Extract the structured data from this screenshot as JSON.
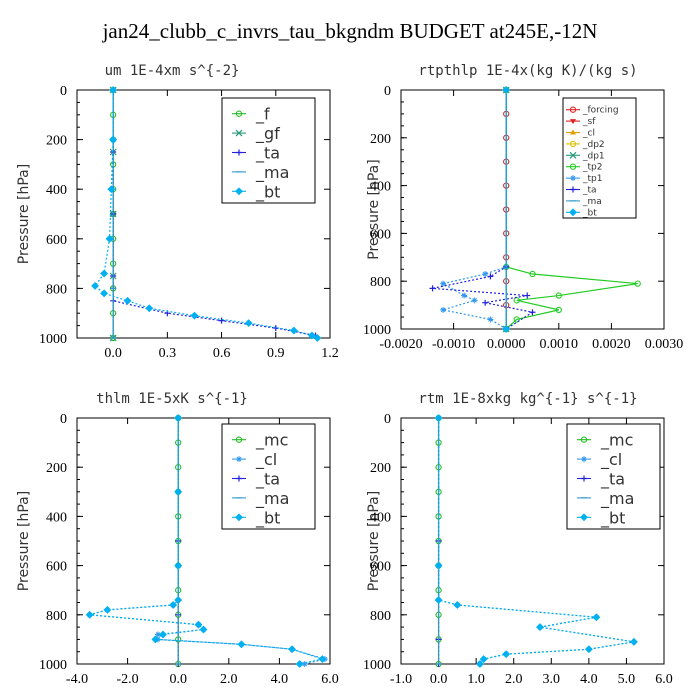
{
  "figure_title": "jan24_clubb_c_invrs_tau_bkgndm  BUDGET at245E,-12N",
  "chart_data": [
    {
      "type": "line",
      "title": "um  1E-4xm s^{-2}",
      "ylabel": "Pressure [hPa]",
      "xlim": [
        -0.2,
        1.2
      ],
      "ylim": [
        1000,
        0
      ],
      "xticks": [
        "0.0",
        "0.3",
        "0.6",
        "0.9",
        "1.2"
      ],
      "xtick_values": [
        0.0,
        0.3,
        0.6,
        0.9,
        1.2
      ],
      "yticks": [
        "0",
        "200",
        "400",
        "600",
        "800",
        "1000"
      ],
      "legend_style": "large",
      "series": [
        {
          "name": "_f",
          "color": "#22bb22",
          "marker": "o",
          "x": [
            0,
            0,
            0,
            0,
            0,
            0,
            0,
            0,
            0,
            0,
            0
          ],
          "y": [
            0,
            100,
            200,
            300,
            400,
            500,
            600,
            700,
            800,
            900,
            1000
          ]
        },
        {
          "name": "_gf",
          "color": "#2a9a7a",
          "marker": "x",
          "x": [
            0,
            0,
            0,
            0,
            0
          ],
          "y": [
            0,
            250,
            500,
            750,
            1000
          ]
        },
        {
          "name": "_ta",
          "color": "#2222dd",
          "marker": "+",
          "x": [
            0,
            0,
            0,
            0,
            0,
            0.0,
            0.3,
            0.6,
            0.9,
            1.12
          ],
          "y": [
            0,
            250,
            500,
            750,
            800,
            850,
            900,
            930,
            960,
            990
          ]
        },
        {
          "name": "_ma",
          "color": "#3399cc",
          "marker": "-",
          "x": [
            0,
            0,
            0,
            0
          ],
          "y": [
            0,
            400,
            800,
            1000
          ]
        },
        {
          "name": "_bt",
          "color": "#00b0f0",
          "marker": "diamond",
          "x": [
            0.0,
            0.0,
            -0.01,
            -0.02,
            -0.05,
            -0.1,
            -0.05,
            0.08,
            0.2,
            0.45,
            0.75,
            1.0,
            1.1,
            1.13
          ],
          "y": [
            0,
            200,
            400,
            600,
            740,
            790,
            820,
            850,
            880,
            910,
            940,
            970,
            990,
            1000
          ]
        }
      ]
    },
    {
      "type": "line",
      "title": "rtpthlp  1E-4x(kg K)/(kg s)",
      "ylabel": "Pressure [hPa]",
      "xlim": [
        -0.002,
        0.003
      ],
      "ylim": [
        1000,
        0
      ],
      "xticks": [
        "-0.0020",
        "-0.0010",
        "0.0000",
        "0.0010",
        "0.0020",
        "0.0030"
      ],
      "xtick_values": [
        -0.002,
        -0.001,
        0.0,
        0.001,
        0.002,
        0.003
      ],
      "yticks": [
        "0",
        "200",
        "400",
        "600",
        "800",
        "1000"
      ],
      "legend_style": "small",
      "series": [
        {
          "name": "_forcing",
          "color": "#dd2222",
          "marker": "o",
          "x": [
            0,
            0,
            0,
            0,
            0,
            0,
            0,
            0,
            0,
            0,
            0
          ],
          "y": [
            0,
            100,
            200,
            300,
            400,
            500,
            600,
            700,
            800,
            900,
            1000
          ]
        },
        {
          "name": "_sf",
          "color": "#dd2222",
          "marker": "v",
          "x": [
            0,
            0
          ],
          "y": [
            0,
            1000
          ]
        },
        {
          "name": "_cl",
          "color": "#e0a000",
          "marker": "^",
          "x": [
            0,
            0
          ],
          "y": [
            0,
            1000
          ]
        },
        {
          "name": "_dp2",
          "color": "#e0c000",
          "marker": "o",
          "x": [
            0,
            0
          ],
          "y": [
            0,
            1000
          ]
        },
        {
          "name": "_dp1",
          "color": "#2a9a7a",
          "marker": "x",
          "x": [
            0,
            0
          ],
          "y": [
            0,
            1000
          ]
        },
        {
          "name": "_tp2",
          "color": "#22cc22",
          "marker": "o",
          "x": [
            0,
            0,
            0.0005,
            0.0025,
            0.001,
            0.0002,
            0.001,
            0.0002,
            0
          ],
          "y": [
            0,
            740,
            770,
            810,
            860,
            880,
            920,
            960,
            1000
          ]
        },
        {
          "name": "_tp1",
          "color": "#3399ee",
          "marker": "*",
          "x": [
            0,
            0,
            -0.0004,
            -0.0012,
            -0.0008,
            -0.0006,
            -0.0012,
            -0.0003,
            0
          ],
          "y": [
            0,
            740,
            770,
            810,
            860,
            880,
            920,
            960,
            1000
          ]
        },
        {
          "name": "_ta",
          "color": "#2222dd",
          "marker": "+",
          "x": [
            0,
            0,
            -0.0003,
            -0.0014,
            0.0004,
            -0.0004,
            0.0005,
            0
          ],
          "y": [
            0,
            740,
            780,
            830,
            860,
            890,
            930,
            1000
          ]
        },
        {
          "name": "_ma",
          "color": "#3399cc",
          "marker": "-",
          "x": [
            0,
            0
          ],
          "y": [
            0,
            1000
          ]
        },
        {
          "name": "_bt",
          "color": "#00b0f0",
          "marker": "diamond",
          "x": [
            0,
            0
          ],
          "y": [
            0,
            1000
          ]
        }
      ]
    },
    {
      "type": "line",
      "title": "thlm  1E-5xK s^{-1}",
      "ylabel": "Pressure [hPa]",
      "xlim": [
        -4.0,
        6.0
      ],
      "ylim": [
        1000,
        0
      ],
      "xticks": [
        "-4.0",
        "-2.0",
        "0.0",
        "2.0",
        "4.0",
        "6.0"
      ],
      "xtick_values": [
        -4.0,
        -2.0,
        0.0,
        2.0,
        4.0,
        6.0
      ],
      "yticks": [
        "0",
        "200",
        "400",
        "600",
        "800",
        "1000"
      ],
      "legend_style": "large",
      "series": [
        {
          "name": "_mc",
          "color": "#22bb22",
          "marker": "o",
          "x": [
            0,
            0,
            0,
            0,
            0,
            0,
            0,
            0,
            0,
            0,
            0
          ],
          "y": [
            0,
            100,
            200,
            300,
            400,
            500,
            600,
            700,
            800,
            900,
            1000
          ]
        },
        {
          "name": "_cl",
          "color": "#3399ee",
          "marker": "*",
          "x": [
            0,
            0,
            0,
            0,
            -0.2,
            -2.8,
            -3.5,
            0.8,
            1.0,
            -0.8,
            -0.8,
            2.5,
            4.5,
            5.8,
            5.0
          ],
          "y": [
            0,
            300,
            600,
            740,
            760,
            780,
            800,
            840,
            860,
            880,
            900,
            920,
            940,
            980,
            1000
          ]
        },
        {
          "name": "_ta",
          "color": "#2222dd",
          "marker": "+",
          "x": [
            0,
            0,
            0,
            0
          ],
          "y": [
            0,
            500,
            800,
            1000
          ]
        },
        {
          "name": "_ma",
          "color": "#3399cc",
          "marker": "-",
          "x": [
            0,
            0
          ],
          "y": [
            0,
            1000
          ]
        },
        {
          "name": "_bt",
          "color": "#00b0f0",
          "marker": "diamond",
          "x": [
            0,
            0,
            0,
            0,
            -0.2,
            -2.8,
            -3.5,
            0.8,
            1.0,
            -0.6,
            -0.9,
            2.5,
            4.5,
            5.7,
            4.8
          ],
          "y": [
            0,
            300,
            600,
            740,
            760,
            780,
            800,
            840,
            860,
            880,
            900,
            920,
            940,
            980,
            1000
          ]
        }
      ]
    },
    {
      "type": "line",
      "title": "rtm  1E-8xkg kg^{-1} s^{-1}",
      "ylabel": "Pressure [hPa]",
      "xlim": [
        -1.0,
        6.0
      ],
      "ylim": [
        1000,
        0
      ],
      "xticks": [
        "-1.0",
        "0.0",
        "1.0",
        "2.0",
        "3.0",
        "4.0",
        "5.0",
        "6.0"
      ],
      "xtick_values": [
        -1.0,
        0.0,
        1.0,
        2.0,
        3.0,
        4.0,
        5.0,
        6.0
      ],
      "yticks": [
        "0",
        "200",
        "400",
        "600",
        "800",
        "1000"
      ],
      "legend_style": "large",
      "series": [
        {
          "name": "_mc",
          "color": "#22bb22",
          "marker": "o",
          "x": [
            0,
            0,
            0,
            0,
            0,
            0,
            0,
            0,
            0,
            0,
            0
          ],
          "y": [
            0,
            100,
            200,
            300,
            400,
            500,
            600,
            700,
            800,
            900,
            1000
          ]
        },
        {
          "name": "_cl",
          "color": "#3399ee",
          "marker": "*",
          "x": [
            0,
            0,
            0,
            0.5,
            4.2,
            2.7,
            5.2,
            4.0,
            1.8,
            1.2,
            1.1
          ],
          "y": [
            0,
            600,
            740,
            760,
            810,
            850,
            910,
            940,
            960,
            980,
            1000
          ]
        },
        {
          "name": "_ta",
          "color": "#2222dd",
          "marker": "+",
          "x": [
            0,
            0,
            0,
            0
          ],
          "y": [
            0,
            500,
            900,
            1000
          ]
        },
        {
          "name": "_ma",
          "color": "#3399cc",
          "marker": "-",
          "x": [
            0,
            0
          ],
          "y": [
            0,
            1000
          ]
        },
        {
          "name": "_bt",
          "color": "#00b0f0",
          "marker": "diamond",
          "x": [
            0,
            0,
            0,
            0.5,
            4.2,
            2.7,
            5.2,
            4.0,
            1.8,
            1.2,
            1.1
          ],
          "y": [
            0,
            600,
            740,
            760,
            810,
            850,
            910,
            940,
            960,
            980,
            1000
          ]
        }
      ]
    }
  ]
}
